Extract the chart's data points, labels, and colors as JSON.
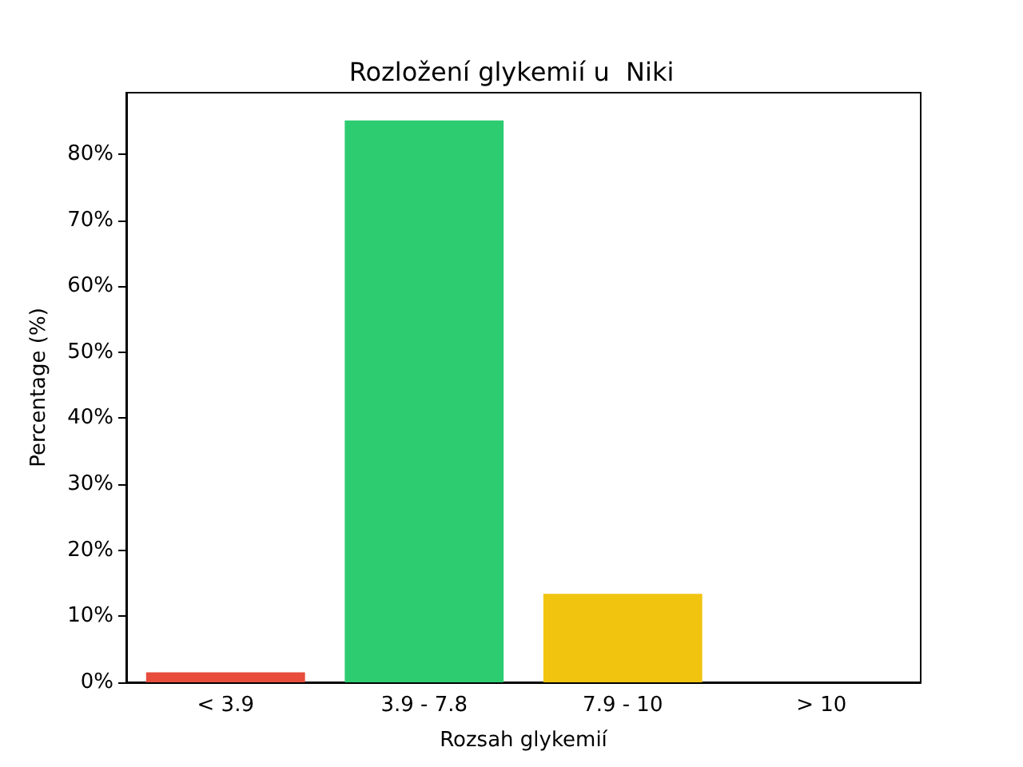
{
  "chart_data": {
    "type": "bar",
    "title": "Rozložení glykemií u  Niki",
    "xlabel": "Rozsah glykemií",
    "ylabel": "Percentage (%)",
    "categories": [
      "< 3.9",
      "3.9 - 7.8",
      "7.9 - 10",
      "> 10"
    ],
    "values": [
      1.5,
      85.1,
      13.4,
      0
    ],
    "colors": [
      "#e74c3c",
      "#2ecc71",
      "#f1c40f",
      null
    ],
    "ylim": [
      0,
      89.3
    ],
    "yticks": [
      {
        "value": 0,
        "label": "0%"
      },
      {
        "value": 10,
        "label": "10%"
      },
      {
        "value": 20,
        "label": "20%"
      },
      {
        "value": 30,
        "label": "30%"
      },
      {
        "value": 40,
        "label": "40%"
      },
      {
        "value": 50,
        "label": "50%"
      },
      {
        "value": 60,
        "label": "60%"
      },
      {
        "value": 70,
        "label": "70%"
      },
      {
        "value": 80,
        "label": "80%"
      }
    ],
    "grid": false
  }
}
